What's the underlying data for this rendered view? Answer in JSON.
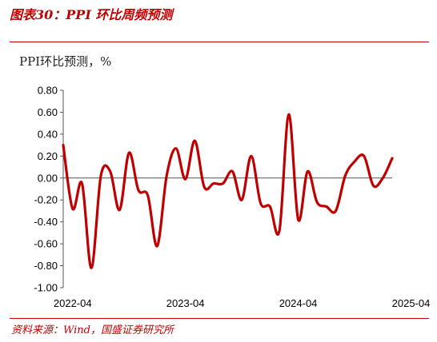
{
  "figure": {
    "title": "图表30：PPI 环比周频预测",
    "source": "资料来源：Wind，国盛证券研究所"
  },
  "colors": {
    "accent": "#c00000",
    "series": "#c00000",
    "axis": "#555555"
  },
  "chart_data": {
    "type": "line",
    "title": "",
    "ylabel": "PPI环比预测，%",
    "xlabel": "",
    "ylim": [
      -1.0,
      0.8
    ],
    "yticks": [
      "0.80",
      "0.60",
      "0.40",
      "0.20",
      "0.00",
      "-0.20",
      "-0.40",
      "-0.60",
      "-0.80",
      "-1.00"
    ],
    "ytick_values": [
      0.8,
      0.6,
      0.4,
      0.2,
      0.0,
      -0.2,
      -0.4,
      -0.6,
      -0.8,
      -1.0
    ],
    "xticks": [
      "2022-04",
      "2023-04",
      "2024-04",
      "2025-04"
    ],
    "xtick_values": [
      "2022-04",
      "2023-04",
      "2024-04",
      "2025-04"
    ],
    "grid": false,
    "legend": "none",
    "series": [
      {
        "values": [
          [
            "2022-03",
            0.3
          ],
          [
            "2022-04",
            -0.28
          ],
          [
            "2022-05",
            -0.05
          ],
          [
            "2022-06",
            -0.82
          ],
          [
            "2022-07",
            0.02
          ],
          [
            "2022-08",
            0.06
          ],
          [
            "2022-09",
            -0.29
          ],
          [
            "2022-10",
            0.23
          ],
          [
            "2022-11",
            -0.11
          ],
          [
            "2022-12",
            -0.16
          ],
          [
            "2023-01",
            -0.62
          ],
          [
            "2023-02",
            0.02
          ],
          [
            "2023-03",
            0.27
          ],
          [
            "2023-04",
            -0.01
          ],
          [
            "2023-05",
            0.34
          ],
          [
            "2023-06",
            -0.08
          ],
          [
            "2023-07",
            -0.05
          ],
          [
            "2023-08",
            -0.05
          ],
          [
            "2023-09",
            0.06
          ],
          [
            "2023-10",
            -0.2
          ],
          [
            "2023-11",
            0.2
          ],
          [
            "2023-12",
            -0.23
          ],
          [
            "2024-01",
            -0.26
          ],
          [
            "2024-02",
            -0.48
          ],
          [
            "2024-03",
            0.58
          ],
          [
            "2024-04",
            -0.38
          ],
          [
            "2024-05",
            0.06
          ],
          [
            "2024-06",
            -0.22
          ],
          [
            "2024-07",
            -0.26
          ],
          [
            "2024-08",
            -0.3
          ],
          [
            "2024-09",
            0.02
          ],
          [
            "2024-10",
            0.15
          ],
          [
            "2024-11",
            0.2
          ],
          [
            "2024-12",
            -0.07
          ],
          [
            "2025-01",
            0.0
          ],
          [
            "2025-02",
            0.18
          ]
        ]
      }
    ]
  }
}
